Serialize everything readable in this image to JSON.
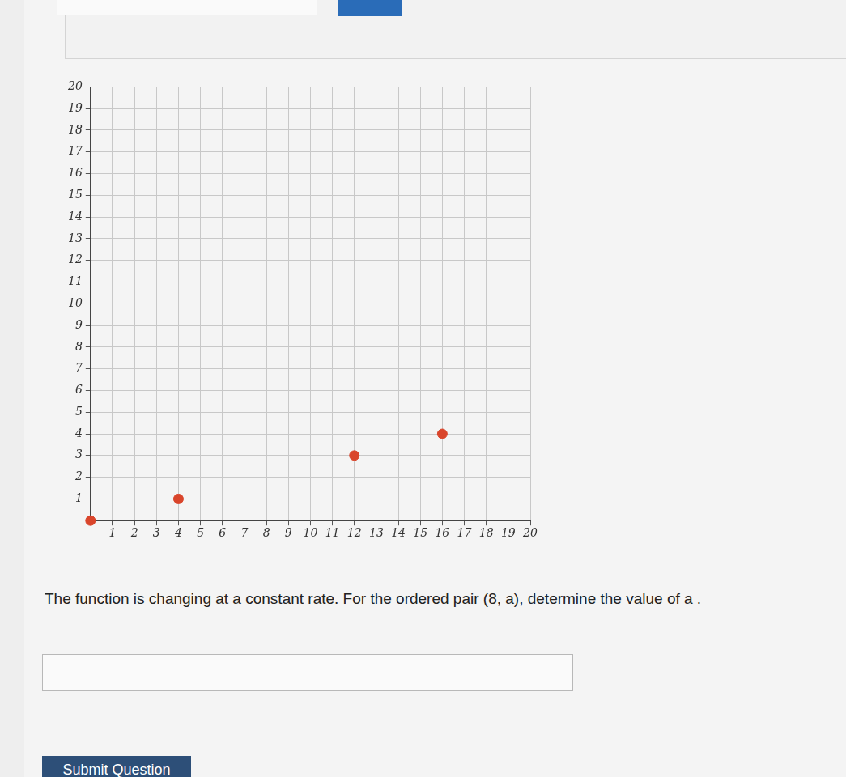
{
  "chart_data": {
    "type": "scatter",
    "x": [
      0,
      4,
      12,
      16
    ],
    "values": [
      0,
      1,
      3,
      4
    ],
    "color": "#d9452b",
    "marker": "circle",
    "xlim": [
      0,
      20
    ],
    "xticks": [
      1,
      2,
      3,
      4,
      5,
      6,
      7,
      8,
      9,
      10,
      11,
      12,
      13,
      14,
      15,
      16,
      17,
      18,
      19,
      20
    ],
    "ylim": [
      0,
      20
    ],
    "yticks": [
      1,
      2,
      3,
      4,
      5,
      6,
      7,
      8,
      9,
      10,
      11,
      12,
      13,
      14,
      15,
      16,
      17,
      18,
      19,
      20
    ],
    "grid": true
  },
  "question": {
    "text": "The function is changing at a constant rate. For the ordered pair (8, a), determine the value of a .",
    "button": "Submit Question"
  }
}
